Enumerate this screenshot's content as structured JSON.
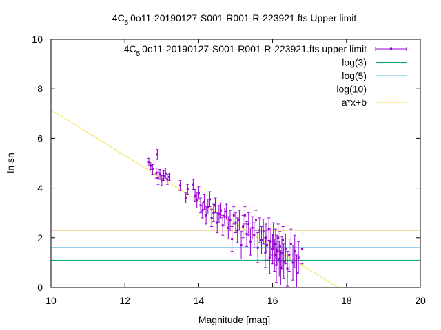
{
  "chart_data": {
    "type": "scatter",
    "title": "4C_5 0o11-20190127-S001-R001-R-223921.fts Upper limit",
    "title_parts": {
      "pre": "4C",
      "sub": "5",
      "post": "0o11-20190127-S001-R001-R-223921.fts Upper limit"
    },
    "xlabel": "Magnitude [mag]",
    "ylabel": "ln sn",
    "xlim": [
      10,
      20
    ],
    "ylim": [
      0,
      10
    ],
    "x_ticks": [
      10,
      12,
      14,
      16,
      18,
      20
    ],
    "y_ticks": [
      0,
      2,
      4,
      6,
      8,
      10
    ],
    "x_tick_labels": [
      "10",
      "12",
      "14",
      "16",
      "18",
      "20"
    ],
    "y_tick_labels": [
      "0",
      "2",
      "4",
      "6",
      "8",
      "10"
    ],
    "grid": false,
    "legend_position": "top-right",
    "legend": [
      {
        "label": "4C 5 0o11-20190127-S001-R001-R-223921.fts upper limit",
        "label_pre": "4C",
        "label_sub": "5",
        "label_post": "0o11-20190127-S001-R001-R-223921.fts upper limit",
        "color": "#9400d3",
        "style": "errorbars"
      },
      {
        "label": "log(3)",
        "color": "#009e73",
        "style": "line"
      },
      {
        "label": "log(5)",
        "color": "#56b4e9",
        "style": "line"
      },
      {
        "label": "log(10)",
        "color": "#e69f00",
        "style": "line"
      },
      {
        "label": "a*x+b",
        "color": "#f0e442",
        "style": "line"
      }
    ],
    "hlines": [
      {
        "name": "log(3)",
        "y": 1.0986,
        "color": "#009e73"
      },
      {
        "name": "log(5)",
        "y": 1.6094,
        "color": "#56b4e9"
      },
      {
        "name": "log(10)",
        "y": 2.3026,
        "color": "#e69f00"
      }
    ],
    "fit_line": {
      "name": "a*x+b",
      "slope": -0.92,
      "intercept": 16.35,
      "color": "#f0e442"
    },
    "series": [
      {
        "name": "4C 5 0o11-20190127-S001-R001-R-223921.fts upper limit",
        "color": "#9400d3",
        "points": [
          [
            12.65,
            5.05,
            0.15
          ],
          [
            12.7,
            4.9,
            0.15
          ],
          [
            12.75,
            4.75,
            0.2
          ],
          [
            12.85,
            4.6,
            0.2
          ],
          [
            12.88,
            5.35,
            0.2
          ],
          [
            12.9,
            4.4,
            0.25
          ],
          [
            12.95,
            4.55,
            0.2
          ],
          [
            13.0,
            4.3,
            0.2
          ],
          [
            13.05,
            4.5,
            0.2
          ],
          [
            13.1,
            4.6,
            0.2
          ],
          [
            13.15,
            4.35,
            0.2
          ],
          [
            13.2,
            4.45,
            0.15
          ],
          [
            13.5,
            4.1,
            0.2
          ],
          [
            13.65,
            3.6,
            0.2
          ],
          [
            13.7,
            3.95,
            0.2
          ],
          [
            13.85,
            4.15,
            0.2
          ],
          [
            13.9,
            3.7,
            0.25
          ],
          [
            13.95,
            3.5,
            0.3
          ],
          [
            14.0,
            3.8,
            0.25
          ],
          [
            14.05,
            3.3,
            0.3
          ],
          [
            14.1,
            3.1,
            0.3
          ],
          [
            14.15,
            3.45,
            0.3
          ],
          [
            14.2,
            2.9,
            0.35
          ],
          [
            14.25,
            3.25,
            0.3
          ],
          [
            14.3,
            3.55,
            0.3
          ],
          [
            14.35,
            2.8,
            0.35
          ],
          [
            14.4,
            3.0,
            0.35
          ],
          [
            14.45,
            3.3,
            0.3
          ],
          [
            14.5,
            2.6,
            0.4
          ],
          [
            14.55,
            2.95,
            0.35
          ],
          [
            14.6,
            3.1,
            0.3
          ],
          [
            14.65,
            2.5,
            0.4
          ],
          [
            14.7,
            2.85,
            0.35
          ],
          [
            14.75,
            3.05,
            0.3
          ],
          [
            14.8,
            2.4,
            0.45
          ],
          [
            14.85,
            2.7,
            0.4
          ],
          [
            14.9,
            1.95,
            0.5
          ],
          [
            14.95,
            2.9,
            0.35
          ],
          [
            15.0,
            2.6,
            0.4
          ],
          [
            15.05,
            2.3,
            0.5
          ],
          [
            15.1,
            2.7,
            0.4
          ],
          [
            15.15,
            1.7,
            0.55
          ],
          [
            15.2,
            2.45,
            0.45
          ],
          [
            15.25,
            2.9,
            0.35
          ],
          [
            15.3,
            2.15,
            0.5
          ],
          [
            15.35,
            2.55,
            0.45
          ],
          [
            15.4,
            1.85,
            0.55
          ],
          [
            15.45,
            2.4,
            0.45
          ],
          [
            15.5,
            2.1,
            0.5
          ],
          [
            15.55,
            2.7,
            0.4
          ],
          [
            15.6,
            1.6,
            0.6
          ],
          [
            15.65,
            2.3,
            0.5
          ],
          [
            15.7,
            1.9,
            0.55
          ],
          [
            15.75,
            2.25,
            0.5
          ],
          [
            15.8,
            1.4,
            0.6
          ],
          [
            15.82,
            2.0,
            0.55
          ],
          [
            15.85,
            1.7,
            0.6
          ],
          [
            15.9,
            2.35,
            0.45
          ],
          [
            15.92,
            1.2,
            0.65
          ],
          [
            15.95,
            1.85,
            0.55
          ],
          [
            16.0,
            1.55,
            0.6
          ],
          [
            16.02,
            2.1,
            0.5
          ],
          [
            16.05,
            1.3,
            0.65
          ],
          [
            16.08,
            1.75,
            0.6
          ],
          [
            16.1,
            0.9,
            0.7
          ],
          [
            16.12,
            1.5,
            0.6
          ],
          [
            16.15,
            2.0,
            0.55
          ],
          [
            16.18,
            1.15,
            0.7
          ],
          [
            16.2,
            1.65,
            0.6
          ],
          [
            16.22,
            0.8,
            0.7
          ],
          [
            16.25,
            1.4,
            0.65
          ],
          [
            16.28,
            1.9,
            0.55
          ],
          [
            16.3,
            1.05,
            0.7
          ],
          [
            16.35,
            1.55,
            0.6
          ],
          [
            16.4,
            0.75,
            0.7
          ],
          [
            16.45,
            1.3,
            0.65
          ],
          [
            16.5,
            1.75,
            0.6
          ],
          [
            16.55,
            1.0,
            0.7
          ],
          [
            16.6,
            1.45,
            0.65
          ],
          [
            16.65,
            0.6,
            0.7
          ],
          [
            16.7,
            1.2,
            0.65
          ],
          [
            16.8,
            1.55,
            0.6
          ]
        ]
      }
    ]
  }
}
